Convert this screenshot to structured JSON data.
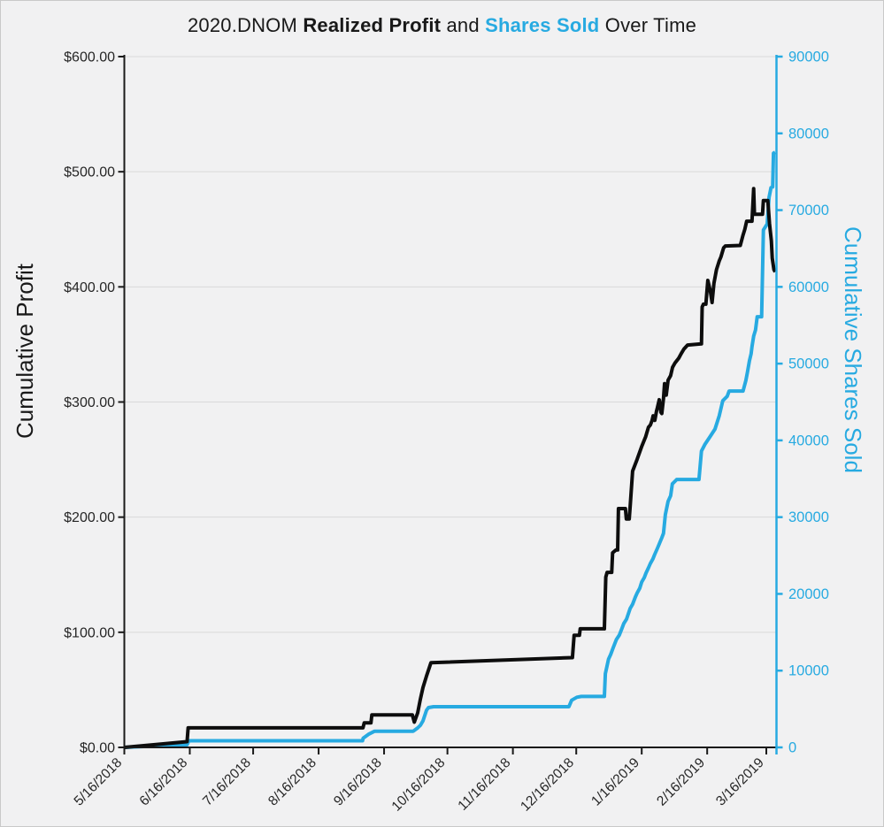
{
  "title": {
    "prefix": "2020.DNOM ",
    "profit_bold": "Realized Profit",
    "middle": " and ",
    "shares_bold": "Shares Sold",
    "suffix": " Over Time"
  },
  "colors": {
    "profit_line": "#0d0d0d",
    "shares_line": "#27aae1",
    "background": "#f1f1f2",
    "gridline": "#d9d9d9",
    "axis_black": "#1a1a1a",
    "tick_text": "#262626"
  },
  "left_axis": {
    "title": "Cumulative Profit",
    "tick_labels": [
      "$0.00",
      "$100.00",
      "$200.00",
      "$300.00",
      "$400.00",
      "$500.00",
      "$600.00"
    ],
    "min": 0,
    "max": 600
  },
  "right_axis": {
    "title": "Cumulative Shares Sold",
    "tick_labels": [
      "0",
      "10000",
      "20000",
      "30000",
      "40000",
      "50000",
      "60000",
      "70000",
      "80000",
      "90000"
    ],
    "min": 0,
    "max": 90000
  },
  "x_axis": {
    "tick_labels": [
      "5/16/2018",
      "6/16/2018",
      "7/16/2018",
      "8/16/2018",
      "9/16/2018",
      "10/16/2018",
      "11/16/2018",
      "12/16/2018",
      "1/16/2019",
      "2/16/2019",
      "3/16/2019"
    ],
    "tick_days": [
      0,
      31,
      61,
      92,
      123,
      153,
      184,
      214,
      245,
      276,
      304
    ],
    "day_span": 308.5
  },
  "chart_data": {
    "type": "line",
    "x_unit": "days since 5/16/2018",
    "xlim_days": [
      0,
      308.5
    ],
    "grid": "horizontal-faint",
    "legend": "none",
    "series": [
      {
        "name": "Realized Profit",
        "axis": "left",
        "color": "#0d0d0d",
        "ylim": [
          0,
          600
        ],
        "points": [
          [
            0,
            0
          ],
          [
            15,
            2.5
          ],
          [
            29.7,
            5
          ],
          [
            30.2,
            17
          ],
          [
            113,
            17
          ],
          [
            113.6,
            21.3
          ],
          [
            116.8,
            21.3
          ],
          [
            117.2,
            28.2
          ],
          [
            136.4,
            28.2
          ],
          [
            137.3,
            22
          ],
          [
            138.9,
            30
          ],
          [
            140.2,
            42
          ],
          [
            141.4,
            52
          ],
          [
            143.1,
            62
          ],
          [
            145.2,
            73.5
          ],
          [
            212.2,
            78
          ],
          [
            213,
            97.3
          ],
          [
            215.5,
            97.3
          ],
          [
            215.9,
            103
          ],
          [
            227.3,
            103
          ],
          [
            228,
            148
          ],
          [
            228.6,
            152
          ],
          [
            230.8,
            152
          ],
          [
            231.2,
            169
          ],
          [
            232.8,
            171.5
          ],
          [
            233.6,
            171.5
          ],
          [
            234,
            207.4
          ],
          [
            237.3,
            207.4
          ],
          [
            237.7,
            198.4
          ],
          [
            239.1,
            198.4
          ],
          [
            239.6,
            211
          ],
          [
            240.7,
            240
          ],
          [
            242.8,
            250
          ],
          [
            244.9,
            261
          ],
          [
            246.9,
            270
          ],
          [
            248.2,
            278
          ],
          [
            249.1,
            280
          ],
          [
            249.9,
            284
          ],
          [
            250.4,
            288
          ],
          [
            251.2,
            284
          ],
          [
            252,
            292
          ],
          [
            252.4,
            295
          ],
          [
            253.3,
            302
          ],
          [
            254.1,
            291
          ],
          [
            254.5,
            290
          ],
          [
            255.3,
            303
          ],
          [
            255.8,
            316
          ],
          [
            256.6,
            306
          ],
          [
            257.5,
            319
          ],
          [
            258.7,
            323
          ],
          [
            259.6,
            330
          ],
          [
            260.8,
            334
          ],
          [
            262.5,
            338
          ],
          [
            263.7,
            342
          ],
          [
            265,
            346
          ],
          [
            266.7,
            349.5
          ],
          [
            273.3,
            350.5
          ],
          [
            273.6,
            382.5
          ],
          [
            274.2,
            385
          ],
          [
            275.4,
            385
          ],
          [
            276.3,
            405.6
          ],
          [
            277.5,
            396
          ],
          [
            278.3,
            386.4
          ],
          [
            279.2,
            403
          ],
          [
            280.4,
            415
          ],
          [
            281.7,
            422.5
          ],
          [
            282.5,
            426
          ],
          [
            283.8,
            434
          ],
          [
            284.6,
            435.5
          ],
          [
            291.7,
            436
          ],
          [
            293,
            445
          ],
          [
            293.8,
            450
          ],
          [
            294.7,
            457
          ],
          [
            297.2,
            457
          ],
          [
            297.6,
            470
          ],
          [
            298,
            485.4
          ],
          [
            298.4,
            463
          ],
          [
            302.2,
            463
          ],
          [
            302.6,
            475
          ],
          [
            304.7,
            475
          ],
          [
            305.5,
            455
          ],
          [
            306.4,
            440
          ],
          [
            306.8,
            425
          ],
          [
            307.6,
            415
          ],
          [
            308.2,
            413
          ]
        ]
      },
      {
        "name": "Shares Sold",
        "axis": "right",
        "color": "#27aae1",
        "ylim": [
          0,
          90000
        ],
        "points": [
          [
            0,
            0
          ],
          [
            15,
            180
          ],
          [
            29.7,
            350
          ],
          [
            30.6,
            870
          ],
          [
            112.8,
            870
          ],
          [
            113.1,
            1200
          ],
          [
            115.6,
            1700
          ],
          [
            118.5,
            2110
          ],
          [
            136.8,
            2110
          ],
          [
            138.9,
            2530
          ],
          [
            140.2,
            2880
          ],
          [
            141.4,
            3460
          ],
          [
            143.1,
            4840
          ],
          [
            144,
            5180
          ],
          [
            146.4,
            5300
          ],
          [
            210.5,
            5300
          ],
          [
            211.8,
            6140
          ],
          [
            214.3,
            6530
          ],
          [
            216.4,
            6640
          ],
          [
            227.3,
            6640
          ],
          [
            227.8,
            9600
          ],
          [
            229.3,
            11500
          ],
          [
            230.3,
            12100
          ],
          [
            231.5,
            13000
          ],
          [
            233,
            14060
          ],
          [
            234.4,
            14630
          ],
          [
            235.7,
            15550
          ],
          [
            236.5,
            16130
          ],
          [
            237.8,
            16700
          ],
          [
            239.5,
            18090
          ],
          [
            240.7,
            18660
          ],
          [
            242,
            19590
          ],
          [
            242.9,
            20160
          ],
          [
            244.1,
            20740
          ],
          [
            245,
            21550
          ],
          [
            246.2,
            22120
          ],
          [
            247,
            22700
          ],
          [
            248.2,
            23390
          ],
          [
            249.1,
            23970
          ],
          [
            250.3,
            24550
          ],
          [
            251.1,
            25120
          ],
          [
            252.4,
            25930
          ],
          [
            253.3,
            26500
          ],
          [
            254.5,
            27310
          ],
          [
            255.3,
            27890
          ],
          [
            256.2,
            30330
          ],
          [
            257.5,
            32060
          ],
          [
            258.7,
            32800
          ],
          [
            259.5,
            34330
          ],
          [
            261.6,
            34900
          ],
          [
            272.1,
            34900
          ],
          [
            273.3,
            38600
          ],
          [
            275,
            39520
          ],
          [
            277.5,
            40550
          ],
          [
            279.7,
            41470
          ],
          [
            281.7,
            43200
          ],
          [
            283.4,
            45160
          ],
          [
            285.5,
            45740
          ],
          [
            286.4,
            46430
          ],
          [
            293,
            46430
          ],
          [
            294.3,
            47810
          ],
          [
            295.1,
            48960
          ],
          [
            296,
            50350
          ],
          [
            296.8,
            51270
          ],
          [
            297.2,
            52190
          ],
          [
            298,
            53570
          ],
          [
            298.9,
            54380
          ],
          [
            299.7,
            56110
          ],
          [
            301.8,
            56110
          ],
          [
            302.6,
            67400
          ],
          [
            304.4,
            68200
          ],
          [
            305.3,
            71650
          ],
          [
            306.2,
            72930
          ],
          [
            307,
            73000
          ],
          [
            307.4,
            77420
          ],
          [
            308.2,
            77530
          ]
        ]
      }
    ]
  }
}
